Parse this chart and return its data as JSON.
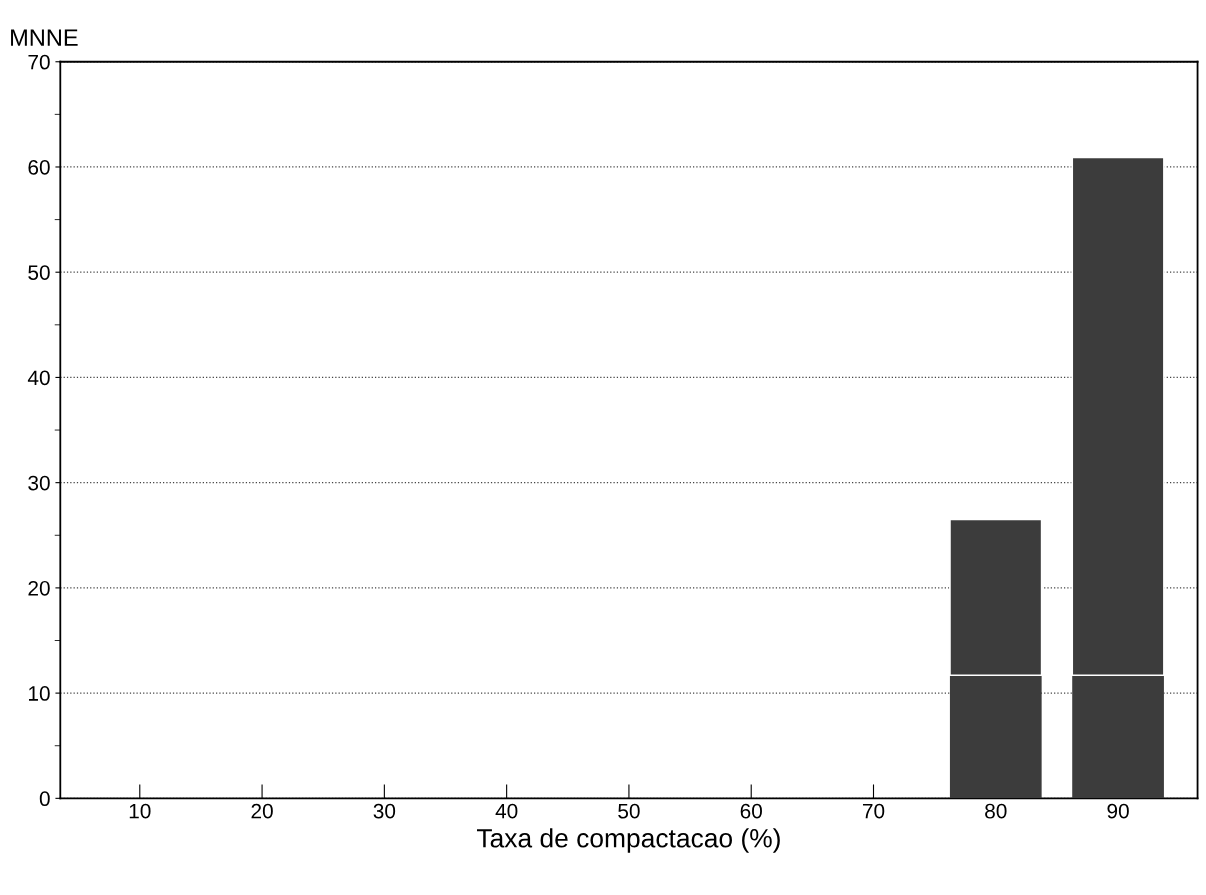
{
  "chart_data": {
    "type": "bar",
    "stacked": true,
    "xlabel": "Taxa de compactacao (%)",
    "ylabel": "MNNE",
    "categories": [
      "10",
      "20",
      "30",
      "40",
      "50",
      "60",
      "70",
      "80",
      "90"
    ],
    "series": [
      {
        "color": "#3c3c3c",
        "values": [
          0,
          0,
          0,
          0,
          0,
          0,
          0,
          11.7,
          11.7
        ]
      },
      {
        "color": "#3c3c3c",
        "values": [
          0,
          0,
          0,
          0,
          0,
          0,
          0,
          14.8,
          49.2
        ]
      }
    ],
    "ylim": [
      0,
      70
    ],
    "yticks": [
      0,
      10,
      20,
      30,
      40,
      50,
      60,
      70
    ],
    "grid": "y",
    "line_style": "dotted"
  }
}
